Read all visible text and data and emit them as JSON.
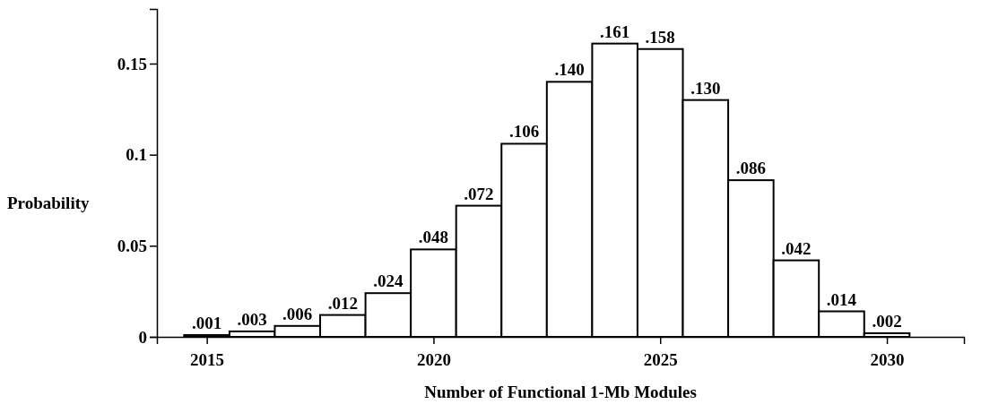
{
  "chart_data": {
    "type": "histogram",
    "xlabel": "Number of Functional 1-Mb Modules",
    "ylabel": "Probability",
    "bins": [
      2014.5,
      2015.5,
      2016.5,
      2017.5,
      2018.5,
      2019.5,
      2020.5,
      2021.5,
      2022.5,
      2023.5,
      2024.5,
      2025.5,
      2026.5,
      2027.5,
      2028.5,
      2029.5,
      2030.5
    ],
    "values": [
      0.001,
      0.003,
      0.006,
      0.012,
      0.024,
      0.048,
      0.072,
      0.106,
      0.14,
      0.161,
      0.158,
      0.13,
      0.086,
      0.042,
      0.014,
      0.002
    ],
    "value_labels": [
      ".001",
      ".003",
      ".006",
      ".012",
      ".024",
      ".048",
      ".072",
      ".106",
      ".140",
      ".161",
      ".158",
      ".130",
      ".086",
      ".042",
      ".014",
      ".002"
    ],
    "color": "#ffffff",
    "xlim": [
      2013.9,
      2031.7
    ],
    "xticks": [
      2015,
      2020,
      2025,
      2030
    ],
    "ylim": [
      0,
      0.18
    ],
    "yticks": [
      0,
      0.05,
      0.1,
      0.15
    ],
    "grid": false
  }
}
